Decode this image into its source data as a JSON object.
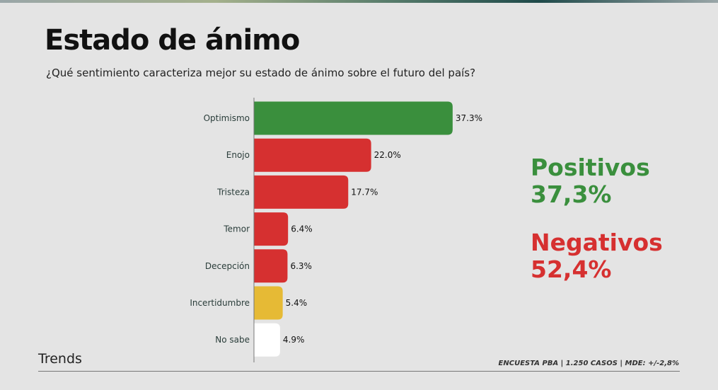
{
  "title": "Estado de ánimo",
  "subtitle": "¿Qué sentimiento caracteriza mejor su estado de ánimo sobre el futuro del país?",
  "chart_data": {
    "type": "bar",
    "orientation": "horizontal",
    "categories": [
      "Optimismo",
      "Enojo",
      "Tristeza",
      "Temor",
      "Decepción",
      "Incertidumbre",
      "No sabe"
    ],
    "values": [
      37.3,
      22.0,
      17.7,
      6.4,
      6.3,
      5.4,
      4.9
    ],
    "labels": [
      "37.3%",
      "22.0%",
      "17.7%",
      "6.4%",
      "6.3%",
      "5.4%",
      "4.9%"
    ],
    "colors": [
      "#3a8f3d",
      "#d63030",
      "#d63030",
      "#d63030",
      "#d63030",
      "#e6ba35",
      "#ffffff"
    ],
    "grid": false
  },
  "summary": {
    "positive_label": "Positivos",
    "positive_value": "37,3%",
    "negative_label": "Negativos",
    "negative_value": "52,4%"
  },
  "brand": "Trends",
  "footnote": "ENCUESTA PBA | 1.250 CASOS | MDE: +/-2,8%"
}
